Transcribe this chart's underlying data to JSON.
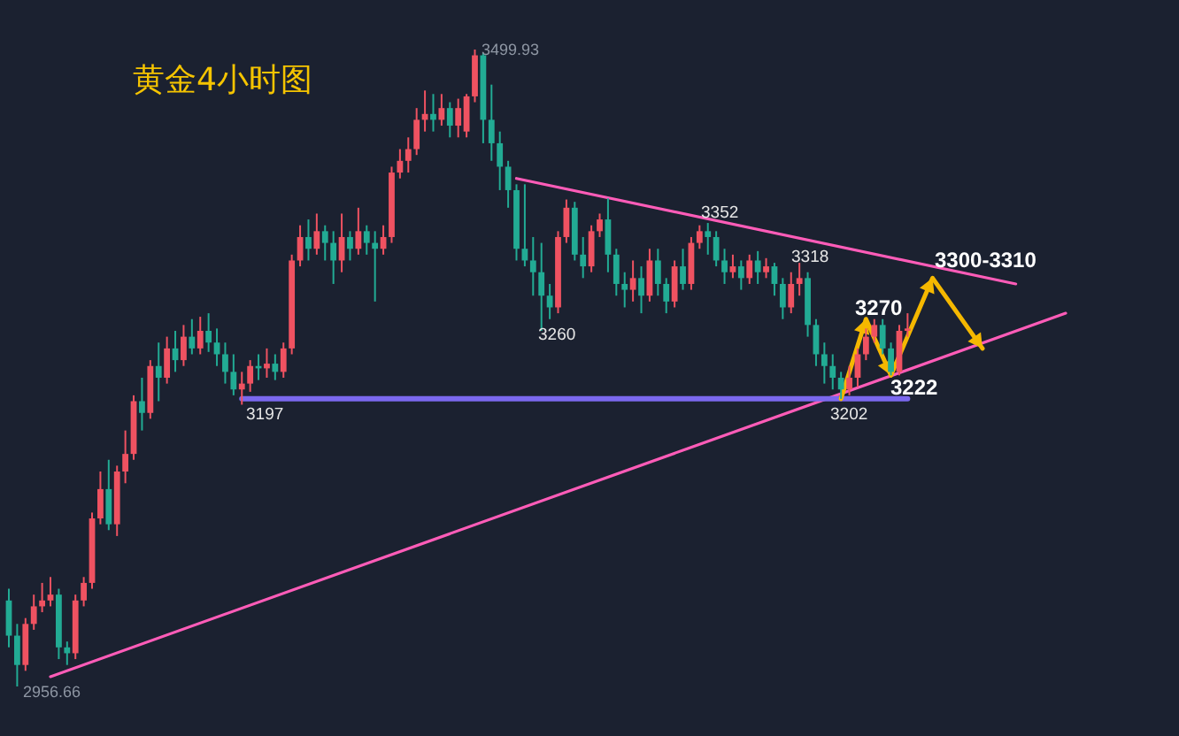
{
  "chart_data": {
    "type": "candlestick",
    "title": "黄金4小时图",
    "categories": [
      null,
      null,
      null,
      null,
      null,
      null,
      null,
      null,
      null,
      null,
      null,
      null,
      null,
      null,
      null,
      null,
      null,
      null,
      null,
      null,
      null,
      null,
      null,
      null,
      null,
      null,
      null,
      null,
      null,
      null,
      null,
      null,
      null,
      null,
      null,
      null,
      null,
      null,
      null,
      null,
      null,
      null,
      null,
      null,
      null,
      null,
      null,
      null,
      null,
      null,
      null,
      null,
      null,
      null,
      null,
      null,
      null,
      null,
      null,
      null,
      null,
      null,
      null,
      null,
      null,
      null,
      null,
      null,
      null,
      null,
      null,
      null,
      null,
      null,
      null,
      null,
      null,
      null,
      null,
      null,
      null,
      null,
      null,
      null,
      null,
      null,
      null,
      null,
      null,
      null,
      null,
      null,
      null,
      null,
      null,
      null,
      null,
      null,
      null,
      null,
      null,
      null,
      null,
      null,
      null,
      null,
      null,
      null,
      null,
      null,
      null,
      null,
      null,
      null,
      null,
      null,
      null,
      null,
      null,
      null,
      null,
      null,
      null,
      null,
      null,
      null,
      null,
      null
    ],
    "ohlc": [
      [
        3030,
        3040,
        2990,
        3000
      ],
      [
        3000,
        3010,
        2956.66,
        2975
      ],
      [
        2975,
        3015,
        2970,
        3010
      ],
      [
        3010,
        3035,
        3005,
        3025
      ],
      [
        3025,
        3045,
        3020,
        3030
      ],
      [
        3030,
        3050,
        3025,
        3035
      ],
      [
        3035,
        3040,
        2980,
        2990
      ],
      [
        2990,
        2995,
        2975,
        2985
      ],
      [
        2985,
        3035,
        2980,
        3030
      ],
      [
        3030,
        3050,
        3025,
        3045
      ],
      [
        3045,
        3105,
        3040,
        3100
      ],
      [
        3100,
        3140,
        3095,
        3125
      ],
      [
        3125,
        3150,
        3090,
        3095
      ],
      [
        3095,
        3145,
        3085,
        3140
      ],
      [
        3140,
        3175,
        3130,
        3155
      ],
      [
        3155,
        3205,
        3150,
        3200
      ],
      [
        3200,
        3220,
        3175,
        3190
      ],
      [
        3190,
        3235,
        3185,
        3230
      ],
      [
        3230,
        3250,
        3200,
        3220
      ],
      [
        3220,
        3255,
        3215,
        3245
      ],
      [
        3245,
        3260,
        3225,
        3235
      ],
      [
        3235,
        3265,
        3230,
        3255
      ],
      [
        3255,
        3270,
        3240,
        3245
      ],
      [
        3245,
        3272,
        3240,
        3260
      ],
      [
        3260,
        3275,
        3242,
        3250
      ],
      [
        3250,
        3262,
        3230,
        3240
      ],
      [
        3240,
        3250,
        3215,
        3225
      ],
      [
        3225,
        3240,
        3205,
        3210
      ],
      [
        3210,
        3225,
        3197,
        3215
      ],
      [
        3215,
        3235,
        3208,
        3230
      ],
      [
        3230,
        3240,
        3218,
        3228
      ],
      [
        3228,
        3245,
        3220,
        3232
      ],
      [
        3232,
        3240,
        3218,
        3225
      ],
      [
        3225,
        3250,
        3220,
        3245
      ],
      [
        3245,
        3325,
        3240,
        3320
      ],
      [
        3320,
        3350,
        3315,
        3340
      ],
      [
        3340,
        3355,
        3320,
        3330
      ],
      [
        3330,
        3360,
        3325,
        3345
      ],
      [
        3345,
        3350,
        3320,
        3335
      ],
      [
        3335,
        3345,
        3300,
        3320
      ],
      [
        3320,
        3360,
        3310,
        3340
      ],
      [
        3340,
        3345,
        3320,
        3330
      ],
      [
        3330,
        3365,
        3325,
        3345
      ],
      [
        3345,
        3350,
        3325,
        3335
      ],
      [
        3335,
        3345,
        3285,
        3330
      ],
      [
        3330,
        3350,
        3325,
        3340
      ],
      [
        3340,
        3400,
        3335,
        3395
      ],
      [
        3395,
        3415,
        3390,
        3405
      ],
      [
        3405,
        3425,
        3395,
        3415
      ],
      [
        3415,
        3450,
        3410,
        3440
      ],
      [
        3440,
        3465,
        3430,
        3445
      ],
      [
        3445,
        3462,
        3430,
        3440
      ],
      [
        3440,
        3462,
        3435,
        3450
      ],
      [
        3450,
        3455,
        3425,
        3435
      ],
      [
        3435,
        3458,
        3425,
        3450
      ],
      [
        3430,
        3462,
        3425,
        3460
      ],
      [
        3460,
        3499.93,
        3455,
        3495
      ],
      [
        3495,
        3497,
        3420,
        3440
      ],
      [
        3440,
        3470,
        3405,
        3420
      ],
      [
        3420,
        3430,
        3380,
        3400
      ],
      [
        3400,
        3405,
        3365,
        3380
      ],
      [
        3380,
        3385,
        3320,
        3330
      ],
      [
        3330,
        3385,
        3315,
        3320
      ],
      [
        3320,
        3340,
        3290,
        3310
      ],
      [
        3310,
        3335,
        3260,
        3290
      ],
      [
        3290,
        3300,
        3270,
        3280
      ],
      [
        3280,
        3345,
        3275,
        3340
      ],
      [
        3340,
        3372,
        3335,
        3365
      ],
      [
        3365,
        3370,
        3320,
        3325
      ],
      [
        3325,
        3340,
        3305,
        3315
      ],
      [
        3315,
        3350,
        3310,
        3345
      ],
      [
        3345,
        3360,
        3340,
        3355
      ],
      [
        3355,
        3373,
        3310,
        3325
      ],
      [
        3325,
        3330,
        3290,
        3300
      ],
      [
        3300,
        3310,
        3280,
        3295
      ],
      [
        3295,
        3320,
        3285,
        3305
      ],
      [
        3305,
        3315,
        3275,
        3290
      ],
      [
        3290,
        3330,
        3285,
        3320
      ],
      [
        3320,
        3330,
        3290,
        3300
      ],
      [
        3300,
        3305,
        3275,
        3285
      ],
      [
        3285,
        3320,
        3280,
        3315
      ],
      [
        3315,
        3330,
        3295,
        3300
      ],
      [
        3300,
        3340,
        3295,
        3335
      ],
      [
        3335,
        3350,
        3330,
        3345
      ],
      [
        3345,
        3352,
        3325,
        3340
      ],
      [
        3340,
        3345,
        3315,
        3320
      ],
      [
        3320,
        3330,
        3300,
        3310
      ],
      [
        3310,
        3325,
        3305,
        3315
      ],
      [
        3315,
        3320,
        3295,
        3305
      ],
      [
        3305,
        3325,
        3300,
        3320
      ],
      [
        3320,
        3328,
        3300,
        3310
      ],
      [
        3310,
        3322,
        3305,
        3315
      ],
      [
        3315,
        3318,
        3290,
        3300
      ],
      [
        3300,
        3305,
        3270,
        3280
      ],
      [
        3280,
        3310,
        3275,
        3300
      ],
      [
        3300,
        3318,
        3290,
        3305
      ],
      [
        3305,
        3310,
        3255,
        3265
      ],
      [
        3265,
        3270,
        3230,
        3240
      ],
      [
        3240,
        3250,
        3215,
        3230
      ],
      [
        3230,
        3240,
        3210,
        3220
      ],
      [
        3220,
        3225,
        3202,
        3210
      ],
      [
        3210,
        3230,
        3205,
        3220
      ],
      [
        3220,
        3245,
        3212,
        3240
      ],
      [
        3240,
        3262,
        3235,
        3255
      ],
      [
        3255,
        3270,
        3250,
        3265
      ],
      [
        3265,
        3270,
        3240,
        3245
      ],
      [
        3245,
        3250,
        3222,
        3225
      ],
      [
        3225,
        3265,
        3222,
        3260
      ],
      [
        3260,
        3275,
        3255,
        3262
      ],
      null,
      null,
      null,
      null,
      null,
      null,
      null,
      null,
      null,
      null,
      null,
      null,
      null,
      null,
      null,
      null,
      null,
      null,
      null
    ],
    "series": [
      {
        "type": "line",
        "color": "#ff5cb8",
        "values": [
          null,
          null,
          null,
          null,
          null,
          null,
          null,
          null,
          null,
          null,
          null,
          null,
          null,
          null,
          null,
          null,
          null,
          null,
          null,
          null,
          null,
          null,
          null,
          null,
          null,
          null,
          null,
          null,
          null,
          null,
          null,
          null,
          null,
          null,
          null,
          null,
          null,
          null,
          null,
          null,
          null,
          null,
          null,
          null,
          null,
          null,
          null,
          null,
          null,
          null,
          null,
          null,
          null,
          null,
          null,
          null,
          null,
          null,
          null,
          null,
          null,
          3390,
          null,
          null,
          null,
          null,
          null,
          null,
          null,
          null,
          null,
          null,
          null,
          null,
          null,
          null,
          null,
          null,
          null,
          null,
          null,
          null,
          null,
          null,
          null,
          null,
          null,
          null,
          null,
          null,
          null,
          null,
          null,
          null,
          null,
          null,
          null,
          null,
          null,
          null,
          null,
          null,
          null,
          null,
          null,
          null,
          null,
          null,
          null,
          null,
          null,
          null,
          null,
          null,
          null,
          null,
          null,
          null,
          null,
          null,
          null,
          3300,
          null,
          null,
          null,
          null,
          null,
          null
        ]
      },
      {
        "type": "line",
        "color": "#ff5cb8",
        "values": [
          null,
          null,
          null,
          null,
          null,
          2965,
          null,
          null,
          null,
          null,
          null,
          null,
          null,
          null,
          null,
          null,
          null,
          null,
          null,
          null,
          null,
          null,
          null,
          null,
          null,
          null,
          null,
          null,
          null,
          null,
          null,
          null,
          null,
          null,
          null,
          null,
          null,
          null,
          null,
          null,
          null,
          null,
          null,
          null,
          null,
          null,
          null,
          null,
          null,
          null,
          null,
          null,
          null,
          null,
          null,
          null,
          null,
          null,
          null,
          null,
          null,
          null,
          null,
          null,
          null,
          null,
          null,
          null,
          null,
          null,
          null,
          null,
          null,
          null,
          null,
          null,
          null,
          null,
          null,
          null,
          null,
          null,
          null,
          null,
          null,
          null,
          null,
          null,
          null,
          null,
          null,
          null,
          null,
          null,
          null,
          null,
          null,
          null,
          null,
          null,
          null,
          null,
          null,
          null,
          null,
          null,
          null,
          null,
          null,
          null,
          null,
          null,
          null,
          null,
          null,
          null,
          null,
          null,
          null,
          null,
          null,
          null,
          null,
          null,
          null,
          null,
          null,
          3275
        ]
      },
      {
        "type": "line",
        "color": "#7b68ee",
        "values": [
          null,
          null,
          null,
          null,
          null,
          null,
          null,
          null,
          null,
          null,
          null,
          null,
          null,
          null,
          null,
          null,
          null,
          null,
          null,
          null,
          null,
          null,
          null,
          null,
          null,
          null,
          null,
          null,
          3202,
          null,
          null,
          null,
          null,
          null,
          null,
          null,
          null,
          null,
          null,
          null,
          null,
          null,
          null,
          null,
          null,
          null,
          null,
          null,
          null,
          null,
          null,
          null,
          null,
          null,
          null,
          null,
          null,
          null,
          null,
          null,
          null,
          null,
          null,
          null,
          null,
          null,
          null,
          null,
          null,
          null,
          null,
          null,
          null,
          null,
          null,
          null,
          null,
          null,
          null,
          null,
          null,
          null,
          null,
          null,
          null,
          null,
          null,
          null,
          null,
          null,
          null,
          null,
          null,
          null,
          null,
          null,
          null,
          null,
          null,
          null,
          null,
          null,
          null,
          null,
          null,
          null,
          null,
          null,
          3202,
          null,
          null,
          null,
          null,
          null,
          null,
          null,
          null,
          null,
          null,
          null,
          null,
          null,
          null,
          null,
          null,
          null,
          null,
          null
        ]
      },
      {
        "type": "line",
        "color": "#f5b800",
        "values": [
          null,
          null,
          null,
          null,
          null,
          null,
          null,
          null,
          null,
          null,
          null,
          null,
          null,
          null,
          null,
          null,
          null,
          null,
          null,
          null,
          null,
          null,
          null,
          null,
          null,
          null,
          null,
          null,
          null,
          null,
          null,
          null,
          null,
          null,
          null,
          null,
          null,
          null,
          null,
          null,
          null,
          null,
          null,
          null,
          null,
          null,
          null,
          null,
          null,
          null,
          null,
          null,
          null,
          null,
          null,
          null,
          null,
          null,
          null,
          null,
          null,
          null,
          null,
          null,
          null,
          null,
          null,
          null,
          null,
          null,
          null,
          null,
          null,
          null,
          null,
          null,
          null,
          null,
          null,
          null,
          null,
          null,
          null,
          null,
          null,
          null,
          null,
          null,
          null,
          null,
          null,
          null,
          null,
          null,
          null,
          null,
          null,
          null,
          null,
          null,
          3202,
          null,
          null,
          3270,
          null,
          null,
          3222,
          null,
          null,
          null,
          null,
          3305,
          null,
          null,
          null,
          null,
          null,
          3245,
          null,
          null,
          null,
          null,
          null,
          null,
          null,
          null,
          null,
          null
        ]
      }
    ],
    "annotations": [
      "3499.93",
      "2956.66",
      "3197",
      "3260",
      "3352",
      "3318",
      "3202",
      "3270",
      "3222",
      "3300-3310"
    ]
  }
}
